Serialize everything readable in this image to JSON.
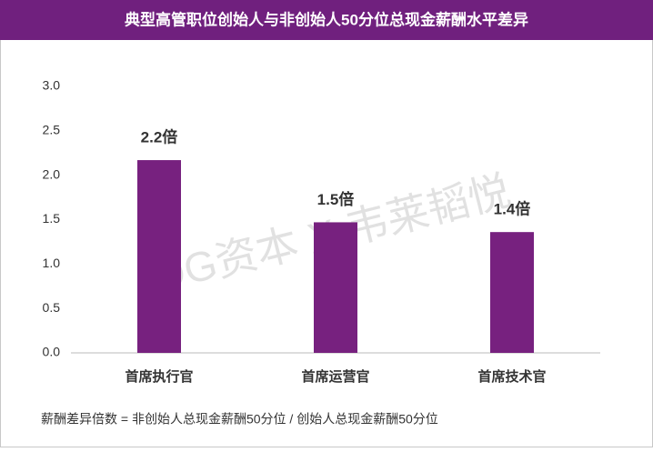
{
  "chart_data": {
    "type": "bar",
    "title": "典型高管职位创始人与非创始人50分位总现金薪酬水平差异",
    "categories": [
      "首席执行官",
      "首席运营官",
      "首席技术官"
    ],
    "values": [
      2.17,
      1.47,
      1.36
    ],
    "value_labels": [
      "2.2倍",
      "1.5倍",
      "1.4倍"
    ],
    "color": "#77217f",
    "ylim": [
      0,
      3
    ],
    "yticks": [
      {
        "value": 0,
        "label": "0.0"
      },
      {
        "value": 0.5,
        "label": "0.5"
      },
      {
        "value": 1,
        "label": "1.0"
      },
      {
        "value": 1.5,
        "label": "1.5"
      },
      {
        "value": 2,
        "label": "2.0"
      },
      {
        "value": 2.5,
        "label": "2.5"
      },
      {
        "value": 3,
        "label": "3.0"
      }
    ],
    "grid": false,
    "watermark": "IDG资本 X 韦莱韬悦",
    "footnote": "薪酬差异倍数 = 非创始人总现金薪酬50分位 / 创始人总现金薪酬50分位"
  }
}
